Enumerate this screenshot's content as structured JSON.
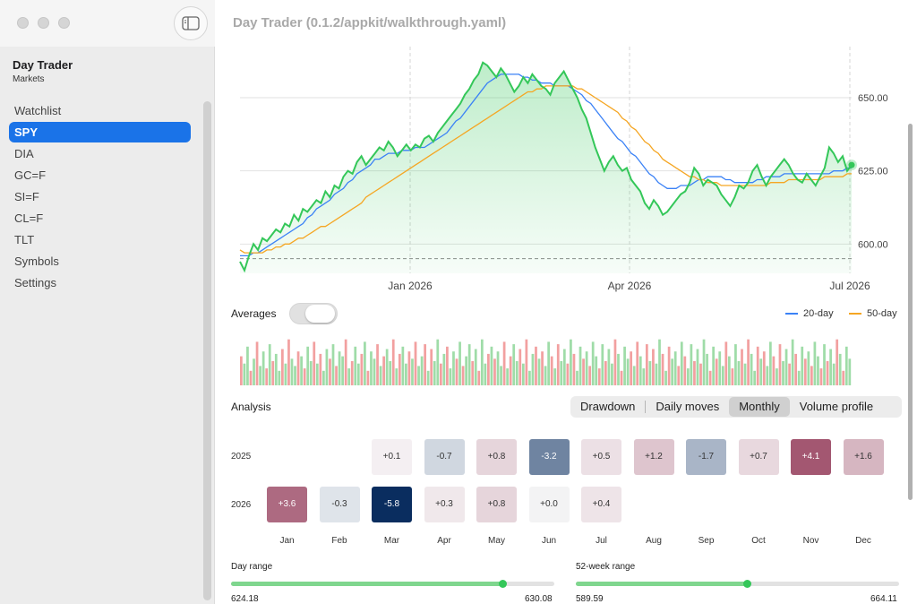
{
  "window": {
    "title": "Day Trader (0.1.2/appkit/walkthrough.yaml)"
  },
  "sidebar": {
    "app_name": "Day Trader",
    "app_subtitle": "Markets",
    "items": [
      {
        "label": "Watchlist",
        "active": false
      },
      {
        "label": "SPY",
        "active": true
      },
      {
        "label": "DIA",
        "active": false
      },
      {
        "label": "GC=F",
        "active": false
      },
      {
        "label": "SI=F",
        "active": false
      },
      {
        "label": "CL=F",
        "active": false
      },
      {
        "label": "TLT",
        "active": false
      },
      {
        "label": "Symbols",
        "active": false
      },
      {
        "label": "Settings",
        "active": false
      }
    ]
  },
  "chart_data": {
    "type": "area",
    "x_tick_labels": [
      "Jan 2026",
      "Apr 2026",
      "Jul 2026"
    ],
    "y_ticks": [
      600,
      625,
      650
    ],
    "y_tick_labels": [
      "600.00",
      "625.00",
      "650.00"
    ],
    "y_range": [
      590,
      665
    ],
    "reference_line": 595,
    "series": [
      {
        "name": "",
        "color": "#34c759",
        "values": [
          594,
          591,
          596,
          600,
          598,
          602,
          601,
          603,
          605,
          604,
          607,
          606,
          610,
          608,
          612,
          611,
          613,
          615,
          614,
          618,
          616,
          620,
          619,
          623,
          625,
          624,
          628,
          630,
          627,
          629,
          631,
          633,
          632,
          635,
          633,
          630,
          632,
          634,
          632,
          634,
          633,
          636,
          637,
          635,
          638,
          640,
          642,
          644,
          646,
          648,
          651,
          653,
          656,
          658,
          662,
          661,
          659,
          657,
          660,
          658,
          655,
          652,
          654,
          657,
          655,
          658,
          656,
          654,
          653,
          651,
          655,
          657,
          659,
          656,
          653,
          650,
          646,
          643,
          638,
          633,
          629,
          625,
          628,
          630,
          627,
          625,
          626,
          622,
          620,
          618,
          614,
          612,
          615,
          613,
          610,
          611,
          613,
          615,
          617,
          618,
          621,
          626,
          624,
          620,
          622,
          621,
          620,
          617,
          615,
          613,
          616,
          620,
          619,
          621,
          625,
          627,
          623,
          620,
          623,
          625,
          627,
          629,
          627,
          624,
          622,
          621,
          624,
          622,
          620,
          623,
          626,
          633,
          631,
          628,
          630,
          625,
          627
        ]
      },
      {
        "name": "20-day",
        "color": "#3b82f6",
        "values": [
          596,
          596,
          596,
          597,
          597,
          598,
          599,
          600,
          601,
          602,
          603,
          604,
          605,
          606,
          607,
          609,
          610,
          612,
          613,
          614,
          615,
          617,
          618,
          619,
          621,
          622,
          624,
          625,
          626,
          627,
          629,
          629,
          630,
          631,
          631,
          631,
          632,
          632,
          632,
          633,
          633,
          633,
          634,
          635,
          636,
          637,
          638,
          640,
          642,
          643,
          645,
          647,
          649,
          651,
          653,
          655,
          656,
          657,
          658,
          658,
          658,
          658,
          658,
          657,
          657,
          656,
          656,
          655,
          655,
          655,
          654,
          654,
          654,
          654,
          653,
          652,
          651,
          649,
          648,
          646,
          644,
          642,
          640,
          638,
          636,
          635,
          633,
          631,
          630,
          628,
          626,
          624,
          623,
          621,
          620,
          619,
          619,
          619,
          620,
          620,
          620,
          621,
          622,
          622,
          623,
          623,
          623,
          623,
          622,
          622,
          621,
          621,
          621,
          621,
          621,
          622,
          622,
          623,
          623,
          623,
          623,
          624,
          624,
          624,
          624,
          624,
          624,
          624,
          624,
          624,
          624,
          624,
          625,
          625,
          625,
          626,
          626
        ]
      },
      {
        "name": "50-day",
        "color": "#f5a623",
        "values": [
          598,
          597,
          597,
          597,
          597,
          597,
          598,
          598,
          599,
          599,
          600,
          600,
          601,
          602,
          602,
          603,
          604,
          605,
          606,
          606,
          607,
          608,
          609,
          610,
          611,
          612,
          613,
          614,
          616,
          617,
          618,
          619,
          620,
          621,
          622,
          623,
          624,
          625,
          626,
          627,
          628,
          629,
          630,
          631,
          632,
          633,
          634,
          635,
          636,
          637,
          638,
          639,
          640,
          641,
          642,
          643,
          644,
          645,
          646,
          647,
          648,
          649,
          650,
          651,
          652,
          652,
          653,
          653,
          654,
          654,
          654,
          654,
          654,
          654,
          654,
          653,
          653,
          652,
          651,
          650,
          649,
          648,
          647,
          646,
          645,
          643,
          642,
          640,
          639,
          637,
          635,
          634,
          632,
          631,
          629,
          628,
          627,
          626,
          625,
          624,
          623,
          623,
          622,
          622,
          621,
          621,
          621,
          620,
          620,
          620,
          620,
          620,
          620,
          620,
          620,
          620,
          620,
          620,
          621,
          621,
          621,
          621,
          622,
          622,
          622,
          622,
          622,
          622,
          622,
          622,
          623,
          623,
          623,
          623,
          623,
          624,
          624
        ]
      }
    ]
  },
  "averages": {
    "label": "Averages",
    "enabled": false
  },
  "legend": [
    {
      "label": "20-day",
      "color": "#3b82f6"
    },
    {
      "label": "50-day",
      "color": "#f5a623"
    }
  ],
  "volume": {
    "bars": [
      0.6,
      0.45,
      0.8,
      0.3,
      0.55,
      0.9,
      0.4,
      0.7,
      0.35,
      0.85,
      0.5,
      0.65,
      0.3,
      0.75,
      0.45,
      0.95,
      0.55,
      0.4,
      0.7,
      0.6,
      0.35,
      0.8,
      0.5,
      0.9,
      0.45,
      0.65,
      0.3,
      0.75,
      0.55,
      0.85,
      0.4,
      0.7,
      0.6,
      0.95,
      0.35,
      0.5,
      0.8,
      0.45,
      0.65,
      0.9,
      0.3,
      0.7,
      0.55,
      0.85,
      0.4,
      0.6,
      0.75,
      0.5,
      0.95,
      0.35,
      0.65,
      0.8,
      0.45,
      0.7,
      0.55,
      0.9,
      0.4,
      0.6,
      0.85,
      0.3,
      0.75,
      0.5,
      0.95,
      0.45,
      0.65,
      0.8,
      0.35,
      0.7,
      0.55,
      0.9,
      0.4,
      0.6,
      0.85,
      0.5,
      0.75,
      0.3,
      0.95,
      0.45,
      0.65,
      0.8,
      0.55,
      0.7,
      0.4,
      0.9,
      0.35,
      0.6,
      0.85,
      0.5,
      0.75,
      0.45,
      0.95,
      0.3,
      0.65,
      0.8,
      0.55,
      0.7,
      0.4,
      0.9,
      0.6,
      0.35,
      0.85,
      0.5,
      0.75,
      0.45,
      0.95,
      0.65,
      0.3,
      0.8,
      0.55,
      0.7,
      0.4,
      0.9,
      0.6,
      0.35,
      0.85,
      0.5,
      0.75,
      0.45,
      0.95,
      0.65,
      0.3,
      0.8,
      0.55,
      0.7,
      0.4,
      0.9,
      0.6,
      0.35,
      0.85,
      0.5,
      0.75,
      0.45,
      0.95,
      0.65,
      0.3,
      0.8,
      0.55,
      0.7,
      0.4,
      0.9,
      0.6,
      0.35,
      0.85,
      0.5,
      0.75,
      0.45,
      0.95,
      0.65,
      0.3,
      0.8,
      0.55,
      0.7,
      0.4,
      0.9,
      0.6,
      0.35,
      0.85,
      0.5,
      0.75,
      0.45,
      0.95,
      0.65,
      0.3,
      0.8,
      0.55,
      0.7,
      0.4,
      0.9,
      0.6,
      0.35,
      0.85,
      0.5,
      0.75,
      0.45,
      0.95,
      0.65,
      0.3,
      0.8,
      0.55,
      0.7,
      0.4,
      0.9,
      0.6,
      0.35,
      0.85,
      0.5,
      0.75,
      0.45,
      0.95,
      0.65,
      0.3,
      0.8,
      0.55
    ],
    "up_color": "#9fdca8",
    "down_color": "#f2a0a0"
  },
  "analysis": {
    "label": "Analysis",
    "tabs": [
      {
        "label": "Drawdown",
        "active": false
      },
      {
        "label": "Daily moves",
        "active": false
      },
      {
        "label": "Monthly",
        "active": true
      },
      {
        "label": "Volume profile",
        "active": false
      }
    ],
    "months": [
      "Jan",
      "Feb",
      "Mar",
      "Apr",
      "May",
      "Jun",
      "Jul",
      "Aug",
      "Sep",
      "Oct",
      "Nov",
      "Dec"
    ],
    "rows": [
      {
        "year": "2025",
        "cells": [
          null,
          null,
          "+0.1",
          "-0.7",
          "+0.8",
          "-3.2",
          "+0.5",
          "+1.2",
          "-1.7",
          "+0.7",
          "+4.1",
          "+1.6"
        ]
      },
      {
        "year": "2026",
        "cells": [
          "+3.6",
          "-0.3",
          "-5.8",
          "+0.3",
          "+0.8",
          "+0.0",
          "+0.4",
          null,
          null,
          null,
          null,
          null
        ]
      }
    ]
  },
  "ranges": {
    "day": {
      "title": "Day range",
      "low": "624.18",
      "high": "630.08",
      "position": 0.84
    },
    "week52": {
      "title": "52-week range",
      "low": "589.59",
      "high": "664.11",
      "position": 0.53
    }
  }
}
